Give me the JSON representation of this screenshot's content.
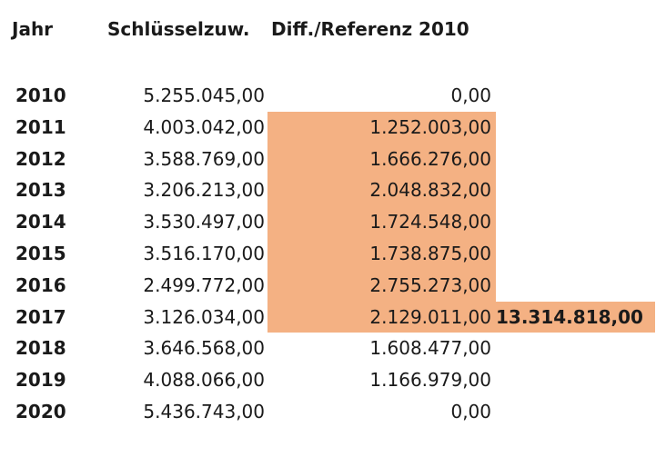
{
  "headers": {
    "jahr": "Jahr",
    "schluesselzuw": "Schlüsselzuw.",
    "diff": "Diff./Referenz 2010"
  },
  "rows": [
    {
      "year": "2010",
      "schluesselzuw": "5.255.045,00",
      "diff": "0,00",
      "highlight": false
    },
    {
      "year": "2011",
      "schluesselzuw": "4.003.042,00",
      "diff": "1.252.003,00",
      "highlight": true
    },
    {
      "year": "2012",
      "schluesselzuw": "3.588.769,00",
      "diff": "1.666.276,00",
      "highlight": true
    },
    {
      "year": "2013",
      "schluesselzuw": "3.206.213,00",
      "diff": "2.048.832,00",
      "highlight": true
    },
    {
      "year": "2014",
      "schluesselzuw": "3.530.497,00",
      "diff": "1.724.548,00",
      "highlight": true
    },
    {
      "year": "2015",
      "schluesselzuw": "3.516.170,00",
      "diff": "1.738.875,00",
      "highlight": true
    },
    {
      "year": "2016",
      "schluesselzuw": "2.499.772,00",
      "diff": "2.755.273,00",
      "highlight": true
    },
    {
      "year": "2017",
      "schluesselzuw": "3.126.034,00",
      "diff": "2.129.011,00",
      "highlight": true,
      "total": "13.314.818,00"
    },
    {
      "year": "2018",
      "schluesselzuw": "3.646.568,00",
      "diff": "1.608.477,00",
      "highlight": false
    },
    {
      "year": "2019",
      "schluesselzuw": "4.088.066,00",
      "diff": "1.166.979,00",
      "highlight": false
    },
    {
      "year": "2020",
      "schluesselzuw": "5.436.743,00",
      "diff": "0,00",
      "highlight": false
    }
  ],
  "colors": {
    "highlight": "#f4b183",
    "text": "#1a1a1a"
  }
}
